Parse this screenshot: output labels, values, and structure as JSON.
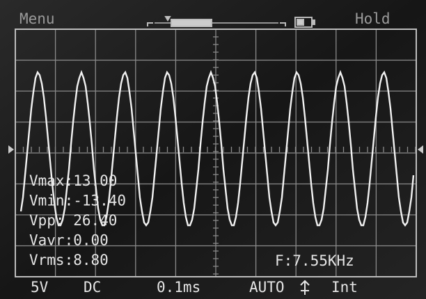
{
  "header": {
    "menu": "Menu",
    "hold": "Hold"
  },
  "measurements": [
    "Vmax:13.00",
    "Vmin:-13.40",
    "Vpp: 26.40",
    "Vavr:0.00",
    "Vrms:8.80"
  ],
  "frequency": "F:7.55KHz",
  "footer": {
    "volts": "5V",
    "coupling": "DC",
    "timebase": "0.1ms",
    "mode": "AUTO",
    "source": "Int"
  }
}
